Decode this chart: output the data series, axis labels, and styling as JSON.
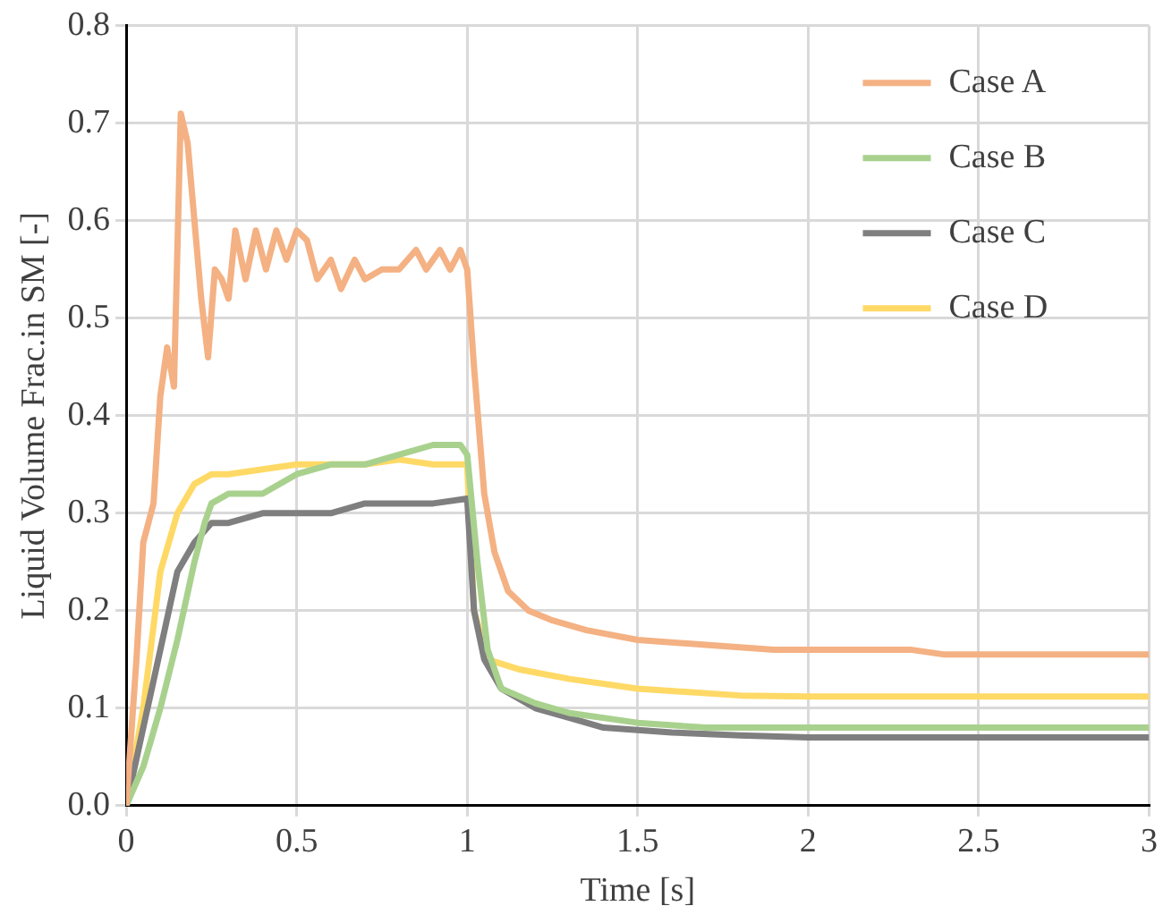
{
  "chart_data": {
    "type": "line",
    "xlabel": "Time [s]",
    "ylabel": "Liquid Volume Frac.in SM [-]",
    "xlim": [
      0,
      3
    ],
    "xticks": [
      0,
      0.5,
      1,
      1.5,
      2,
      2.5,
      3
    ],
    "ylim": [
      0,
      0.8
    ],
    "yticks": [
      {
        "value": 0,
        "label": "0.0"
      },
      0.1,
      0.2,
      0.3,
      0.4,
      0.5,
      0.6,
      0.7,
      0.8
    ],
    "grid": true,
    "legend": "top right",
    "marker": "none",
    "line_style": "solid",
    "series": [
      {
        "name": "Case A",
        "color": "#f4b183",
        "x": [
          0,
          0.03,
          0.05,
          0.08,
          0.1,
          0.12,
          0.14,
          0.16,
          0.18,
          0.2,
          0.22,
          0.24,
          0.26,
          0.28,
          0.3,
          0.32,
          0.35,
          0.38,
          0.41,
          0.44,
          0.47,
          0.5,
          0.53,
          0.56,
          0.6,
          0.63,
          0.67,
          0.7,
          0.75,
          0.8,
          0.85,
          0.88,
          0.92,
          0.95,
          0.98,
          1.0,
          1.02,
          1.05,
          1.08,
          1.12,
          1.18,
          1.25,
          1.35,
          1.5,
          1.7,
          1.9,
          2.1,
          2.3,
          2.4,
          2.6,
          3
        ],
        "values": [
          0,
          0.15,
          0.27,
          0.31,
          0.42,
          0.47,
          0.43,
          0.71,
          0.68,
          0.6,
          0.52,
          0.46,
          0.55,
          0.54,
          0.52,
          0.59,
          0.54,
          0.59,
          0.55,
          0.59,
          0.56,
          0.59,
          0.58,
          0.54,
          0.56,
          0.53,
          0.56,
          0.54,
          0.55,
          0.55,
          0.57,
          0.55,
          0.57,
          0.55,
          0.57,
          0.55,
          0.45,
          0.32,
          0.26,
          0.22,
          0.2,
          0.19,
          0.18,
          0.17,
          0.165,
          0.16,
          0.16,
          0.16,
          0.155,
          0.155,
          0.155
        ]
      },
      {
        "name": "Case B",
        "color": "#a9d18e",
        "x": [
          0,
          0.05,
          0.1,
          0.15,
          0.2,
          0.23,
          0.25,
          0.3,
          0.4,
          0.5,
          0.6,
          0.7,
          0.8,
          0.9,
          0.98,
          1.0,
          1.03,
          1.06,
          1.1,
          1.2,
          1.3,
          1.5,
          1.7,
          2,
          3
        ],
        "values": [
          0,
          0.04,
          0.1,
          0.17,
          0.25,
          0.29,
          0.31,
          0.32,
          0.32,
          0.34,
          0.35,
          0.35,
          0.36,
          0.37,
          0.37,
          0.36,
          0.25,
          0.16,
          0.12,
          0.105,
          0.095,
          0.085,
          0.08,
          0.08,
          0.08
        ]
      },
      {
        "name": "Case C",
        "color": "#7f7f7f",
        "x": [
          0,
          0.05,
          0.1,
          0.15,
          0.2,
          0.25,
          0.3,
          0.4,
          0.5,
          0.6,
          0.7,
          0.8,
          0.9,
          1.0,
          1.02,
          1.05,
          1.1,
          1.2,
          1.3,
          1.4,
          1.6,
          1.8,
          2,
          3
        ],
        "values": [
          0,
          0.08,
          0.16,
          0.24,
          0.27,
          0.29,
          0.29,
          0.3,
          0.3,
          0.3,
          0.31,
          0.31,
          0.31,
          0.315,
          0.2,
          0.15,
          0.12,
          0.1,
          0.09,
          0.08,
          0.075,
          0.072,
          0.07,
          0.07
        ]
      },
      {
        "name": "Case D",
        "color": "#ffd966",
        "x": [
          0,
          0.05,
          0.1,
          0.15,
          0.2,
          0.25,
          0.3,
          0.4,
          0.5,
          0.6,
          0.7,
          0.8,
          0.9,
          1.0,
          1.02,
          1.06,
          1.15,
          1.3,
          1.5,
          1.8,
          2,
          3
        ],
        "values": [
          0,
          0.1,
          0.24,
          0.3,
          0.33,
          0.34,
          0.34,
          0.345,
          0.35,
          0.35,
          0.35,
          0.355,
          0.35,
          0.35,
          0.2,
          0.15,
          0.14,
          0.13,
          0.12,
          0.113,
          0.112,
          0.112
        ]
      }
    ]
  }
}
